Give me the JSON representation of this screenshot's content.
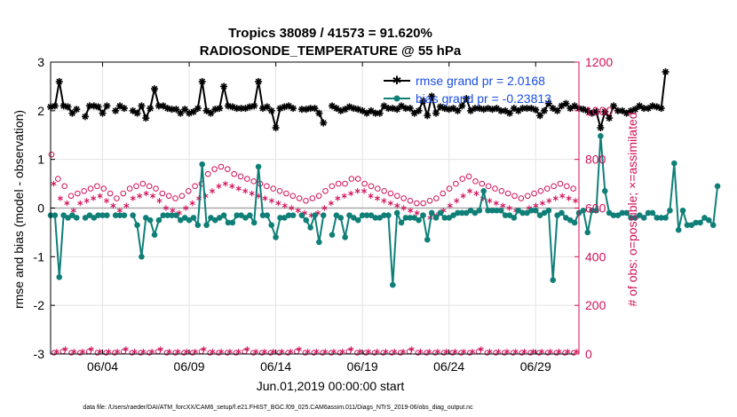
{
  "chart_data": {
    "type": "line",
    "title_line1": "Tropics 38089 / 41573 = 91.620%",
    "title_line2": "RADIOSONDE_TEMPERATURE @ 55 hPa",
    "xlabel": "Jun.01,2019 00:00:00 start",
    "ylabel_left": "rmse and bias (model - observation)",
    "ylabel_right": "# of obs: o=possible; ×=assimilated",
    "xlim": [
      0,
      30.5
    ],
    "ylim_left": [
      -3,
      3
    ],
    "ylim_right": [
      0,
      1200
    ],
    "x_ticks": [
      3,
      8,
      13,
      18,
      23,
      28
    ],
    "x_tick_labels": [
      "06/04",
      "06/09",
      "06/14",
      "06/19",
      "06/24",
      "06/29"
    ],
    "y_ticks_left": [
      -3,
      -2,
      -1,
      0,
      1,
      2,
      3
    ],
    "y_tick_labels_left": [
      "-3",
      "-2",
      "-1",
      "0",
      "1",
      "2",
      "3"
    ],
    "y_ticks_right": [
      0,
      200,
      400,
      600,
      800,
      1000,
      1200
    ],
    "y_tick_labels_right": [
      "0",
      "200",
      "400",
      "600",
      "800",
      "1000",
      "1200"
    ],
    "legend": {
      "position": "top-right",
      "rmse_label": "rmse grand pr = 2.0168",
      "bias_label": "bias grand pr = -0.23813"
    },
    "colors": {
      "rmse": "#000000",
      "bias": "#0f7f78",
      "obs": "#d0105a",
      "zero_line": "#aaaaaa",
      "grid": "#e3e3e3"
    },
    "x_step_days": 0.25,
    "series": [
      {
        "name": "rmse",
        "axis": "left",
        "values": [
          2.08,
          2.1,
          2.6,
          2.1,
          2.08,
          1.95,
          2.03,
          null,
          1.88,
          2.1,
          2.1,
          2.08,
          1.95,
          2.1,
          null,
          2.0,
          2.1,
          2.05,
          null,
          2.0,
          1.95,
          2.1,
          1.85,
          2.05,
          2.45,
          2.1,
          2.1,
          2.05,
          2.03,
          2.03,
          1.95,
          2.03,
          1.95,
          1.98,
          2.05,
          2.6,
          2.0,
          1.95,
          2.03,
          2.05,
          2.5,
          2.1,
          2.08,
          2.05,
          2.05,
          2.05,
          2.08,
          2.1,
          2.6,
          2.05,
          2.08,
          2.0,
          1.65,
          2.05,
          2.08,
          2.1,
          2.05,
          null,
          2.03,
          2.03,
          2.05,
          2.05,
          1.95,
          1.75,
          null,
          2.1,
          2.05,
          2.0,
          2.03,
          2.08,
          2.05,
          2.03,
          2.0,
          1.95,
          2.0,
          1.95,
          1.95,
          2.1,
          2.05,
          2.05,
          2.03,
          2.1,
          2.05,
          2.05,
          1.95,
          2.0,
          2.2,
          1.9,
          2.3,
          1.95,
          2.08,
          2.05,
          2.03,
          2.05,
          2.0,
          2.1,
          2.25,
          2.0,
          2.05,
          2.05,
          2.03,
          2.05,
          2.03,
          2.05,
          2.0,
          2.0,
          1.95,
          2.05,
          2.0,
          2.05,
          2.05,
          2.05,
          2.02,
          1.9,
          2.0,
          2.15,
          2.05,
          2.0,
          2.1,
          2.15,
          2.05,
          2.1,
          2.05,
          2.03,
          2.0,
          1.95,
          1.98,
          1.65,
          1.98,
          1.85,
          2.1,
          2.0,
          2.0,
          1.95,
          2.0,
          2.03,
          2.1,
          2.05,
          2.05,
          2.1,
          2.08,
          2.05,
          2.8
        ]
      },
      {
        "name": "bias",
        "axis": "left",
        "values": [
          -0.15,
          -0.15,
          -1.42,
          -0.15,
          -0.2,
          -0.15,
          -0.2,
          null,
          -0.2,
          -0.15,
          -0.2,
          -0.15,
          -0.15,
          -0.15,
          null,
          -0.15,
          -0.15,
          -0.15,
          null,
          -0.15,
          -0.35,
          -1.0,
          -0.2,
          -0.25,
          -0.55,
          -0.25,
          -0.15,
          -0.15,
          -0.15,
          -0.15,
          -0.25,
          -0.2,
          -0.25,
          -0.2,
          -0.35,
          0.9,
          -0.35,
          -0.2,
          -0.25,
          -0.2,
          -0.15,
          -0.3,
          -0.3,
          -0.15,
          -0.15,
          -0.2,
          -0.15,
          -0.3,
          0.85,
          -0.15,
          -0.15,
          -0.35,
          -0.6,
          -0.2,
          -0.2,
          -0.15,
          -0.15,
          null,
          -0.15,
          -0.25,
          -0.4,
          -0.15,
          -0.7,
          -0.15,
          null,
          -0.55,
          -0.15,
          -0.2,
          -0.6,
          -0.15,
          -0.2,
          -0.25,
          -0.15,
          -0.15,
          -0.15,
          -0.2,
          -0.2,
          -0.15,
          -0.15,
          -1.58,
          -0.1,
          -0.3,
          -0.2,
          -0.2,
          -0.2,
          -0.25,
          -0.15,
          -0.65,
          -0.1,
          -0.2,
          -0.1,
          -0.2,
          -0.2,
          -0.15,
          -0.1,
          -0.1,
          -0.1,
          -0.05,
          -0.1,
          -0.05,
          0.35,
          -0.05,
          -0.05,
          -0.05,
          -0.05,
          -0.15,
          -0.15,
          -0.2,
          -0.05,
          -0.1,
          -0.1,
          -0.05,
          -0.05,
          -0.15,
          -0.1,
          -0.05,
          -1.48,
          -0.15,
          -0.1,
          -0.2,
          -0.25,
          -0.3,
          -0.1,
          -0.05,
          -0.5,
          -0.05,
          -0.05,
          1.48,
          0.35,
          -0.1,
          -0.15,
          -0.15,
          -0.1,
          -0.1,
          -0.2,
          -0.2,
          -0.15,
          -0.2,
          -0.1,
          -0.1,
          -0.2,
          -0.2,
          -0.2,
          -0.05,
          0.92,
          -0.45,
          -0.05,
          -0.35,
          -0.35,
          -0.3,
          -0.3,
          -0.2,
          -0.25,
          -0.35,
          0.45
        ]
      },
      {
        "name": "obs_possible",
        "axis": "right",
        "pattern_alternate": true,
        "values_high_time": [
          820,
          720,
          690,
          650,
          660,
          670,
          680,
          690,
          680,
          660,
          640,
          660,
          680,
          690,
          700,
          690,
          680,
          660,
          650,
          640,
          650,
          670,
          690,
          700,
          740,
          760,
          770,
          760,
          740,
          730,
          720,
          710,
          700,
          690,
          680,
          670,
          660,
          650,
          640,
          630,
          640,
          650,
          670,
          690,
          700,
          700,
          720,
          720,
          700,
          690,
          680,
          670,
          660,
          650,
          640,
          630,
          620,
          620,
          630,
          640,
          660,
          680,
          700,
          720,
          730,
          710,
          700,
          690,
          680,
          670,
          660,
          650,
          640,
          650,
          660,
          670,
          680,
          690,
          700,
          690,
          680
        ],
        "values_low_time": [
          5,
          10,
          5,
          5,
          10,
          5,
          5,
          5,
          10,
          5,
          5,
          5,
          10,
          5,
          5,
          5,
          5,
          10,
          5,
          5,
          5,
          5,
          10,
          5,
          5,
          5,
          5,
          5,
          10,
          5,
          5,
          5,
          5,
          5,
          10,
          5,
          5,
          5,
          5,
          5,
          5,
          10,
          5,
          5,
          5,
          5,
          5,
          5,
          5,
          10,
          5,
          5,
          5,
          5,
          5,
          5,
          5,
          5,
          5,
          5,
          5
        ]
      },
      {
        "name": "obs_assimilated",
        "axis": "right",
        "values_high_time": [
          700,
          640,
          620,
          590,
          620,
          630,
          640,
          650,
          630,
          610,
          590,
          610,
          640,
          650,
          660,
          650,
          630,
          600,
          590,
          580,
          600,
          620,
          640,
          650,
          670,
          690,
          700,
          690,
          680,
          670,
          660,
          650,
          640,
          630,
          620,
          610,
          600,
          590,
          580,
          570,
          580,
          600,
          620,
          640,
          650,
          660,
          670,
          670,
          650,
          640,
          630,
          620,
          610,
          600,
          590,
          580,
          570,
          560,
          570,
          590,
          610,
          630,
          650,
          670,
          660,
          640,
          630,
          620,
          610,
          600,
          590,
          580,
          600,
          610,
          620,
          630,
          640,
          650,
          640,
          630
        ],
        "values_low_time": [
          10,
          20,
          10,
          10,
          20,
          10,
          10,
          10,
          20,
          10,
          10,
          10,
          20,
          10,
          10,
          10,
          10,
          20,
          10,
          10,
          10,
          10,
          20,
          10,
          10,
          10,
          10,
          10,
          20,
          10,
          10,
          10,
          10,
          10,
          20,
          10,
          10,
          10,
          10,
          10,
          10,
          20,
          10,
          10,
          10,
          10,
          10,
          10,
          10,
          20,
          10,
          10,
          10,
          10,
          10,
          10,
          10,
          10,
          10,
          10,
          10
        ]
      }
    ],
    "footnote": "data file: /Users/raeder/DAI/ATM_forcXX/CAM6_setup/f.e21.FHIST_BGC.f09_025.CAM6assim.011/Diags_NTrS_2019-06/obs_diag_output.nc"
  }
}
